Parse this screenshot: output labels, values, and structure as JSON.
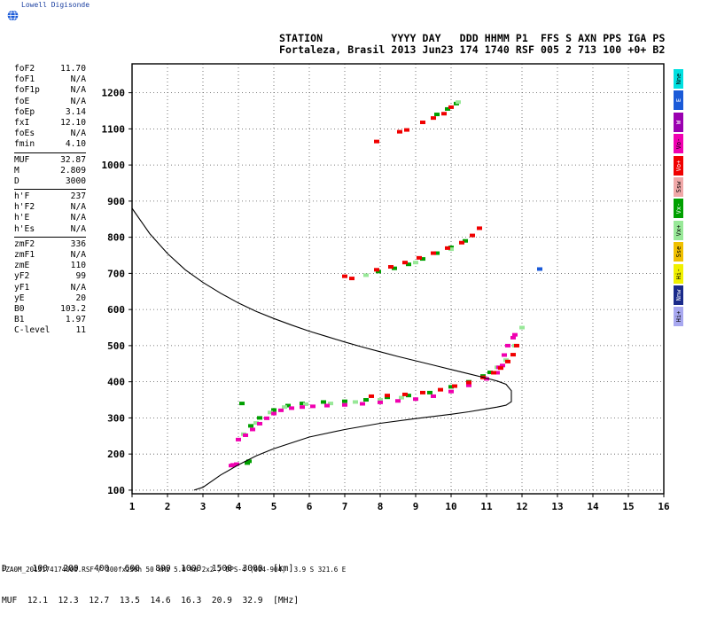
{
  "logo": {
    "text": "Lowell Digisonde",
    "icon": "globe-icon"
  },
  "header": {
    "line1": "STATION           YYYY DAY   DDD HHMM P1  FFS S AXN PPS IGA PS",
    "line2": "Fortaleza, Brasil 2013 Jun23 174 1740 RSF 005 2 713 100 +0+ B2"
  },
  "params": {
    "group1": [
      {
        "name": "foF2",
        "value": "11.70"
      },
      {
        "name": "foF1",
        "value": "N/A"
      },
      {
        "name": "foF1p",
        "value": "N/A"
      },
      {
        "name": "foE",
        "value": "N/A"
      },
      {
        "name": "foEp",
        "value": "3.14"
      },
      {
        "name": "fxI",
        "value": "12.10"
      },
      {
        "name": "foEs",
        "value": "N/A"
      },
      {
        "name": "fmin",
        "value": "4.10"
      }
    ],
    "group2": [
      {
        "name": "MUF",
        "value": "32.87"
      },
      {
        "name": "M",
        "value": "2.809"
      },
      {
        "name": "D",
        "value": "3000"
      }
    ],
    "group3": [
      {
        "name": "h'F",
        "value": "237"
      },
      {
        "name": "h'F2",
        "value": "N/A"
      },
      {
        "name": "h'E",
        "value": "N/A"
      },
      {
        "name": "h'Es",
        "value": "N/A"
      }
    ],
    "group4": [
      {
        "name": "zmF2",
        "value": "336"
      },
      {
        "name": "zmF1",
        "value": "N/A"
      },
      {
        "name": "zmE",
        "value": "110"
      },
      {
        "name": "yF2",
        "value": "99"
      },
      {
        "name": "yF1",
        "value": "N/A"
      },
      {
        "name": "yE",
        "value": "20"
      },
      {
        "name": "B0",
        "value": "103.2"
      },
      {
        "name": "B1",
        "value": "1.97"
      },
      {
        "name": "C-level",
        "value": "11"
      }
    ]
  },
  "legend": [
    {
      "label": "Nne",
      "color": "#00e0e0"
    },
    {
      "label": "E",
      "color": "#1a5ad8"
    },
    {
      "label": "W",
      "color": "#9a00b0"
    },
    {
      "label": "Vo-",
      "color": "#f000b0"
    },
    {
      "label": "Vo+",
      "color": "#f00000"
    },
    {
      "label": "Ssw",
      "color": "#f0a8a8"
    },
    {
      "label": "Vx-",
      "color": "#00a000"
    },
    {
      "label": "Vx+",
      "color": "#98e898"
    },
    {
      "label": "Sse",
      "color": "#f0c000"
    },
    {
      "label": "Hi-",
      "color": "#f0f000"
    },
    {
      "label": "Nnw",
      "color": "#1a2a8a"
    },
    {
      "label": "Hi+",
      "color": "#a8a8f0"
    }
  ],
  "muf_table": {
    "line1": "D     100   200   400   600   800  1000  1500  3000  [km]",
    "line2": "MUF  12.1  12.3  12.7  13.5  14.6  16.3  20.9  32.9  [MHz]"
  },
  "footer": "FZA0M_2013174174000.RSF / 300fx256h 50 kHz 5.0 km 2x2 / DPS-4 (904-904)  3.9 S 321.6 E",
  "chart_data": {
    "type": "scatter",
    "title": "",
    "xlabel": "",
    "ylabel": "",
    "xlim": [
      1,
      16
    ],
    "ylim": [
      90,
      1280
    ],
    "x_ticks": [
      1,
      2,
      3,
      4,
      5,
      6,
      7,
      8,
      9,
      10,
      11,
      12,
      13,
      14,
      15,
      16
    ],
    "y_ticks": [
      100,
      200,
      300,
      400,
      500,
      600,
      700,
      800,
      900,
      1000,
      1100,
      1200
    ],
    "grid": true,
    "profile_curve": {
      "name": "profile",
      "x": [
        1.0,
        1.5,
        2.0,
        2.5,
        3.0,
        3.5,
        4.0,
        4.5,
        5.0,
        5.5,
        6.0,
        6.5,
        7.0,
        7.5,
        8.0,
        8.5,
        9.0,
        9.5,
        10.0,
        10.5,
        11.0,
        11.3,
        11.55,
        11.7,
        11.7,
        11.55,
        11.3,
        11.0,
        10.5,
        10.0,
        9.0,
        8.0,
        7.0,
        6.0,
        5.0,
        4.5,
        4.0,
        3.5,
        3.0,
        2.75
      ],
      "y": [
        880,
        810,
        755,
        710,
        675,
        645,
        618,
        595,
        575,
        557,
        540,
        525,
        510,
        496,
        483,
        470,
        458,
        446,
        434,
        422,
        410,
        402,
        393,
        375,
        345,
        335,
        330,
        325,
        317,
        310,
        298,
        285,
        268,
        247,
        215,
        195,
        170,
        142,
        108,
        100
      ]
    },
    "traces": [
      {
        "name": "Vx-",
        "color": "#00a000",
        "points": [
          [
            4.1,
            340
          ],
          [
            4.35,
            278
          ],
          [
            4.6,
            300
          ],
          [
            5.0,
            322
          ],
          [
            5.4,
            334
          ],
          [
            5.8,
            340
          ],
          [
            6.4,
            344
          ],
          [
            7.0,
            346
          ],
          [
            7.6,
            350
          ],
          [
            8.2,
            357
          ],
          [
            8.8,
            362
          ],
          [
            9.4,
            370
          ],
          [
            10.0,
            386
          ],
          [
            10.5,
            400
          ],
          [
            10.9,
            416
          ],
          [
            11.1,
            426
          ],
          [
            4.3,
            180
          ],
          [
            4.25,
            175
          ],
          [
            7.95,
            705
          ],
          [
            8.4,
            714
          ],
          [
            8.8,
            725
          ],
          [
            9.2,
            740
          ],
          [
            9.6,
            756
          ],
          [
            10.0,
            772
          ],
          [
            10.4,
            790
          ],
          [
            9.6,
            1140
          ],
          [
            9.9,
            1155
          ],
          [
            10.15,
            1170
          ]
        ]
      },
      {
        "name": "Vx+",
        "color": "#98e898",
        "points": [
          [
            4.15,
            255
          ],
          [
            4.5,
            286
          ],
          [
            4.9,
            315
          ],
          [
            5.3,
            330
          ],
          [
            5.9,
            338
          ],
          [
            6.6,
            340
          ],
          [
            7.3,
            344
          ],
          [
            8.0,
            350
          ],
          [
            8.6,
            356
          ],
          [
            11.3,
            440
          ],
          [
            11.55,
            460
          ],
          [
            11.8,
            500
          ],
          [
            12.0,
            550
          ],
          [
            7.6,
            695
          ],
          [
            9.0,
            730
          ],
          [
            10.0,
            767
          ],
          [
            10.2,
            1174
          ]
        ]
      },
      {
        "name": "Vo-",
        "color": "#f000b0",
        "points": [
          [
            3.8,
            168
          ],
          [
            3.85,
            170
          ],
          [
            3.95,
            172
          ],
          [
            4.0,
            240
          ],
          [
            4.2,
            252
          ],
          [
            4.4,
            268
          ],
          [
            4.6,
            284
          ],
          [
            4.8,
            299
          ],
          [
            5.0,
            312
          ],
          [
            5.2,
            321
          ],
          [
            5.5,
            327
          ],
          [
            5.8,
            330
          ],
          [
            6.1,
            332
          ],
          [
            6.5,
            334
          ],
          [
            7.0,
            336
          ],
          [
            7.5,
            339
          ],
          [
            8.0,
            343
          ],
          [
            8.5,
            347
          ],
          [
            9.0,
            352
          ],
          [
            9.5,
            360
          ],
          [
            10.0,
            373
          ],
          [
            10.5,
            390
          ],
          [
            11.0,
            408
          ],
          [
            11.3,
            425
          ],
          [
            11.45,
            445
          ],
          [
            11.5,
            474
          ],
          [
            11.6,
            500
          ],
          [
            11.75,
            522
          ],
          [
            11.8,
            530
          ],
          [
            11.35,
            440
          ]
        ]
      },
      {
        "name": "Vo+",
        "color": "#f00000",
        "points": [
          [
            7.75,
            360
          ],
          [
            8.2,
            362
          ],
          [
            8.7,
            365
          ],
          [
            9.2,
            370
          ],
          [
            9.7,
            378
          ],
          [
            10.1,
            388
          ],
          [
            10.5,
            398
          ],
          [
            10.9,
            412
          ],
          [
            11.2,
            425
          ],
          [
            11.4,
            438
          ],
          [
            11.6,
            456
          ],
          [
            11.75,
            475
          ],
          [
            11.85,
            500
          ],
          [
            7.9,
            710
          ],
          [
            8.3,
            718
          ],
          [
            8.7,
            730
          ],
          [
            9.1,
            743
          ],
          [
            9.5,
            756
          ],
          [
            9.9,
            770
          ],
          [
            10.3,
            785
          ],
          [
            10.6,
            805
          ],
          [
            10.8,
            825
          ],
          [
            7.9,
            1065
          ],
          [
            8.55,
            1092
          ],
          [
            8.75,
            1097
          ],
          [
            9.2,
            1118
          ],
          [
            9.5,
            1130
          ],
          [
            9.8,
            1142
          ],
          [
            10.0,
            1160
          ],
          [
            7.0,
            692
          ],
          [
            7.2,
            686
          ]
        ]
      },
      {
        "name": "E",
        "color": "#1a5ad8",
        "points": [
          [
            12.5,
            712
          ]
        ]
      }
    ]
  }
}
